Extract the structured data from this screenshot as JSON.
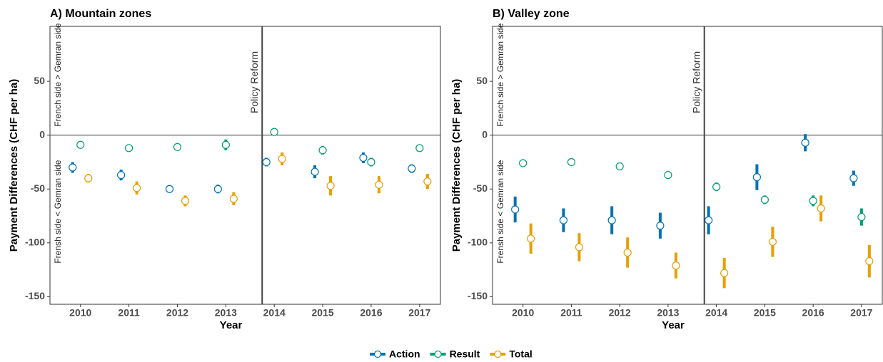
{
  "chart_data": [
    {
      "type": "errorbar",
      "title": "A) Mountain zones",
      "x_label": "Year",
      "y_label": "Payment Differences (CHF per ha)",
      "annotations": [
        "French side > Gemran side",
        "Frensh side < Gemran side"
      ],
      "reform_label": "Policy Reform",
      "reform_x": 2013.75,
      "hline": 0,
      "x": [
        2010,
        2011,
        2012,
        2013,
        2014,
        2015,
        2016,
        2017
      ],
      "xlim": [
        2009.37,
        2017.43
      ],
      "ylim": [
        -157,
        101
      ],
      "yticks": [
        -150,
        -100,
        -50,
        0,
        50
      ],
      "series": [
        {
          "name": "Action",
          "color": "#0072b2",
          "values": [
            -30,
            -37,
            -50,
            -50,
            -25,
            -34,
            -21,
            -31
          ],
          "errors": [
            5,
            5,
            3,
            4,
            4,
            6,
            5,
            4
          ]
        },
        {
          "name": "Result",
          "color": "#009e73",
          "values": [
            -9,
            -12,
            -11,
            -9,
            3,
            -14,
            -25,
            -12
          ],
          "errors": [
            1,
            2,
            3,
            5,
            3,
            4,
            4,
            3
          ]
        },
        {
          "name": "Total",
          "color": "#e69f00",
          "values": [
            -40,
            -49,
            -61,
            -59,
            -22,
            -47,
            -46,
            -43
          ],
          "errors": [
            4,
            6,
            5,
            6,
            6,
            9,
            8,
            7
          ]
        }
      ]
    },
    {
      "type": "errorbar",
      "title": "B) Valley zone",
      "x_label": "Year",
      "y_label": "Payment Differences (CHF per ha)",
      "annotations": [
        "French side > Gemran side",
        "Frensh side < Gemran side"
      ],
      "reform_label": "Policy Reform",
      "reform_x": 2013.75,
      "hline": 0,
      "x": [
        2010,
        2011,
        2012,
        2013,
        2014,
        2015,
        2016,
        2017
      ],
      "xlim": [
        2009.37,
        2017.43
      ],
      "ylim": [
        -157,
        101
      ],
      "yticks": [
        -150,
        -100,
        -50,
        0,
        50
      ],
      "series": [
        {
          "color": "#0072b2",
          "values": [
            -69,
            -79,
            -79,
            -84,
            -79,
            -39,
            -7,
            -40
          ],
          "errors": [
            12,
            11,
            13,
            12,
            13,
            12,
            8,
            7
          ]
        },
        {
          "color": "#009e73",
          "values": [
            -26,
            -25,
            -29,
            -37,
            -48,
            -60,
            -61,
            -76
          ],
          "errors": [
            1,
            2,
            2,
            3,
            4,
            4,
            5,
            8
          ]
        },
        {
          "color": "#e69f00",
          "values": [
            -96,
            -104,
            -109,
            -121,
            -128,
            -99,
            -68,
            -117
          ],
          "errors": [
            14,
            13,
            14,
            12,
            14,
            14,
            12,
            15
          ]
        }
      ]
    }
  ]
}
